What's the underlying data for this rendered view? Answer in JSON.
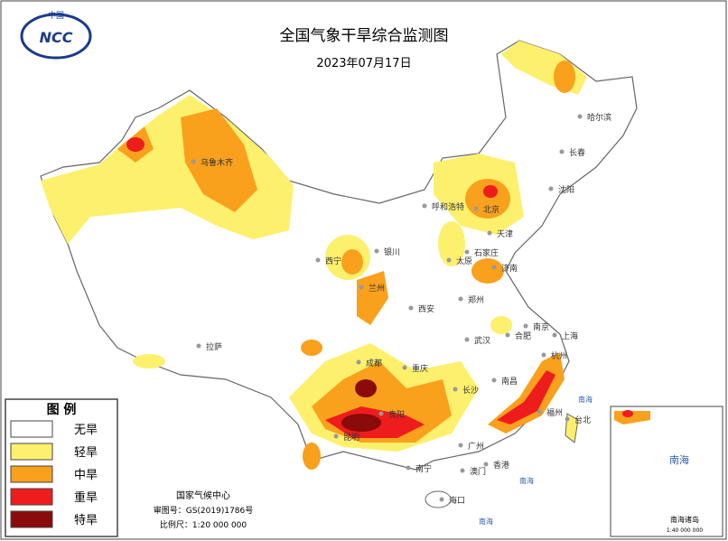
{
  "header": {
    "title": "全国气象干旱综合监测图",
    "date": "2023年07月17日",
    "logo_top": "中国",
    "logo_mark": "NCC"
  },
  "legend": {
    "title": "图 例",
    "items": [
      {
        "label": "无旱",
        "color": "#ffffff"
      },
      {
        "label": "轻旱",
        "color": "#fdf06c"
      },
      {
        "label": "中旱",
        "color": "#f9a01d"
      },
      {
        "label": "重旱",
        "color": "#ee1c1c"
      },
      {
        "label": "特旱",
        "color": "#8b0a0a"
      }
    ]
  },
  "credits": {
    "agency": "国家气候中心",
    "approval": "审图号：GS(2019)1786号",
    "scale": "比例尺：1:20 000 000"
  },
  "inset": {
    "title": "南海诸岛",
    "sea": "南海",
    "scale": "1:40 000 000"
  },
  "cities": [
    "哈尔滨",
    "长春",
    "沈阳",
    "乌鲁木齐",
    "呼和浩特",
    "北京",
    "天津",
    "石家庄",
    "太原",
    "银川",
    "西宁",
    "兰州",
    "济南",
    "郑州",
    "西安",
    "南京",
    "合肥",
    "上海",
    "杭州",
    "武汉",
    "南昌",
    "长沙",
    "福州",
    "台北",
    "成都",
    "重庆",
    "拉萨",
    "贵阳",
    "昆明",
    "南宁",
    "广州",
    "香港",
    "澳门",
    "海口"
  ],
  "sea_labels": [
    "南海",
    "南海",
    "南海"
  ]
}
